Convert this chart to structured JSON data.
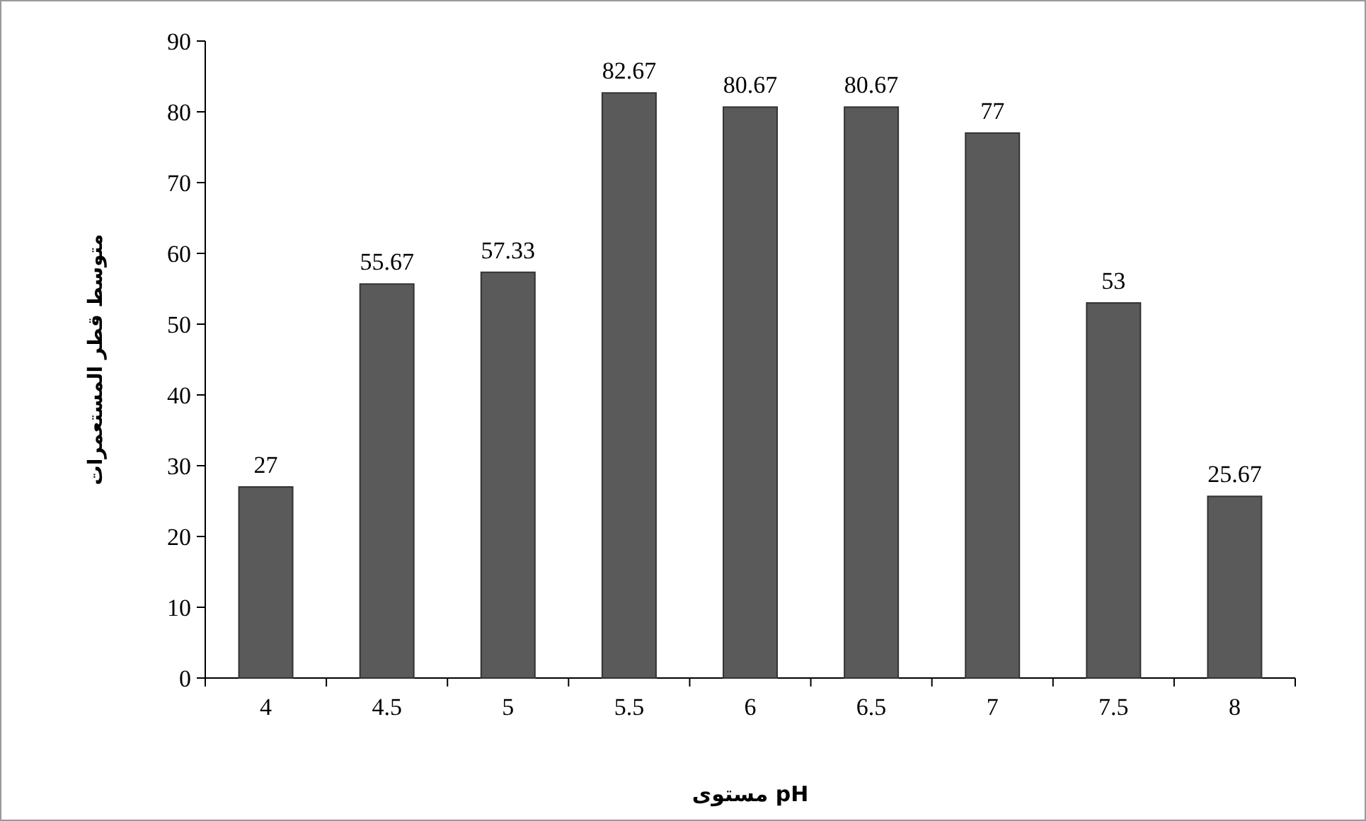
{
  "chart_data": {
    "type": "bar",
    "xlabel": "مستوى pH",
    "ylabel": "متوسط قطر المستعمرات",
    "categories": [
      "4",
      "4.5",
      "5",
      "5.5",
      "6",
      "6.5",
      "7",
      "7.5",
      "8"
    ],
    "values": [
      27,
      55.67,
      57.33,
      82.67,
      80.67,
      80.67,
      77,
      53,
      25.67
    ],
    "color": "#5a5a5a",
    "ylim": [
      0,
      90
    ],
    "yticks": [
      0,
      10,
      20,
      30,
      40,
      50,
      60,
      70,
      80,
      90
    ],
    "data_labels": true
  }
}
